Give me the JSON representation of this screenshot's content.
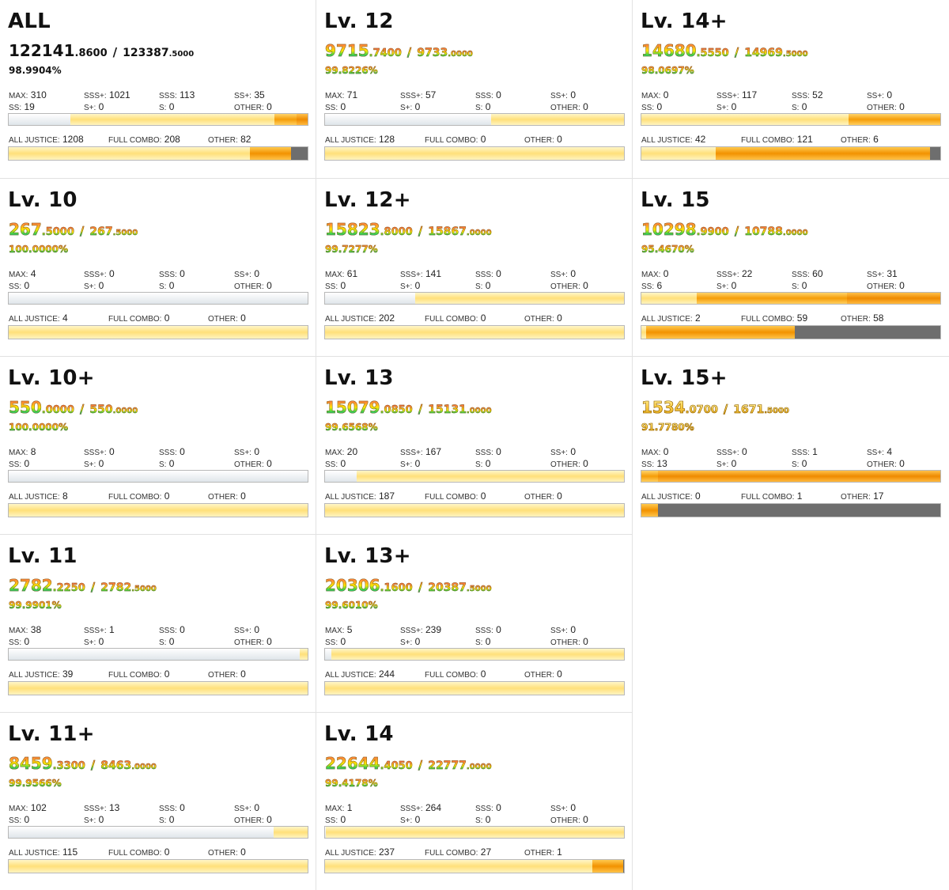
{
  "cards": [
    {
      "title": "ALL",
      "style": "plain",
      "cur_int": "122141",
      "cur_dec": ".8600",
      "max_int": "123387",
      "max_dec": ".5000",
      "percent": "98.9904%",
      "stats": {
        "max": "310",
        "sssp": "1021",
        "sss": "113",
        "ssp": "35",
        "ss": "19",
        "sp": "0",
        "s": "0",
        "other": "0"
      },
      "lamps": {
        "aj": "1208",
        "fc": "208",
        "other": "82"
      }
    },
    {
      "title": "Lv. 12",
      "style": "rainbow",
      "cur_int": "9715",
      "cur_dec": ".7400",
      "max_int": "9733",
      "max_dec": ".0000",
      "percent": "99.8226%",
      "stats": {
        "max": "71",
        "sssp": "57",
        "sss": "0",
        "ssp": "0",
        "ss": "0",
        "sp": "0",
        "s": "0",
        "other": "0"
      },
      "lamps": {
        "aj": "128",
        "fc": "0",
        "other": "0"
      }
    },
    {
      "title": "Lv. 14+",
      "style": "rainbow",
      "cur_int": "14680",
      "cur_dec": ".5550",
      "max_int": "14969",
      "max_dec": ".5000",
      "percent": "98.0697%",
      "stats": {
        "max": "0",
        "sssp": "117",
        "sss": "52",
        "ssp": "0",
        "ss": "0",
        "sp": "0",
        "s": "0",
        "other": "0"
      },
      "lamps": {
        "aj": "42",
        "fc": "121",
        "other": "6"
      }
    },
    {
      "title": "Lv. 10",
      "style": "rainbow",
      "cur_int": "267",
      "cur_dec": ".5000",
      "max_int": "267",
      "max_dec": ".5000",
      "percent": "100.0000%",
      "stats": {
        "max": "4",
        "sssp": "0",
        "sss": "0",
        "ssp": "0",
        "ss": "0",
        "sp": "0",
        "s": "0",
        "other": "0"
      },
      "lamps": {
        "aj": "4",
        "fc": "0",
        "other": "0"
      }
    },
    {
      "title": "Lv. 12+",
      "style": "rainbow",
      "cur_int": "15823",
      "cur_dec": ".8000",
      "max_int": "15867",
      "max_dec": ".0000",
      "percent": "99.7277%",
      "stats": {
        "max": "61",
        "sssp": "141",
        "sss": "0",
        "ssp": "0",
        "ss": "0",
        "sp": "0",
        "s": "0",
        "other": "0"
      },
      "lamps": {
        "aj": "202",
        "fc": "0",
        "other": "0"
      }
    },
    {
      "title": "Lv. 15",
      "style": "rainbow",
      "cur_int": "10298",
      "cur_dec": ".9900",
      "max_int": "10788",
      "max_dec": ".0000",
      "percent": "95.4670%",
      "stats": {
        "max": "0",
        "sssp": "22",
        "sss": "60",
        "ssp": "31",
        "ss": "6",
        "sp": "0",
        "s": "0",
        "other": "0"
      },
      "lamps": {
        "aj": "2",
        "fc": "59",
        "other": "58"
      }
    },
    {
      "title": "Lv. 10+",
      "style": "rainbow",
      "cur_int": "550",
      "cur_dec": ".0000",
      "max_int": "550",
      "max_dec": ".0000",
      "percent": "100.0000%",
      "stats": {
        "max": "8",
        "sssp": "0",
        "sss": "0",
        "ssp": "0",
        "ss": "0",
        "sp": "0",
        "s": "0",
        "other": "0"
      },
      "lamps": {
        "aj": "8",
        "fc": "0",
        "other": "0"
      }
    },
    {
      "title": "Lv. 13",
      "style": "rainbow",
      "cur_int": "15079",
      "cur_dec": ".0850",
      "max_int": "15131",
      "max_dec": ".0000",
      "percent": "99.6568%",
      "stats": {
        "max": "20",
        "sssp": "167",
        "sss": "0",
        "ssp": "0",
        "ss": "0",
        "sp": "0",
        "s": "0",
        "other": "0"
      },
      "lamps": {
        "aj": "187",
        "fc": "0",
        "other": "0"
      }
    },
    {
      "title": "Lv. 15+",
      "style": "gold",
      "cur_int": "1534",
      "cur_dec": ".0700",
      "max_int": "1671",
      "max_dec": ".5000",
      "percent": "91.7780%",
      "stats": {
        "max": "0",
        "sssp": "0",
        "sss": "1",
        "ssp": "4",
        "ss": "13",
        "sp": "0",
        "s": "0",
        "other": "0"
      },
      "lamps": {
        "aj": "0",
        "fc": "1",
        "other": "17"
      }
    },
    {
      "title": "Lv. 11",
      "style": "rainbow",
      "cur_int": "2782",
      "cur_dec": ".2250",
      "max_int": "2782",
      "max_dec": ".5000",
      "percent": "99.9901%",
      "stats": {
        "max": "38",
        "sssp": "1",
        "sss": "0",
        "ssp": "0",
        "ss": "0",
        "sp": "0",
        "s": "0",
        "other": "0"
      },
      "lamps": {
        "aj": "39",
        "fc": "0",
        "other": "0"
      }
    },
    {
      "title": "Lv. 13+",
      "style": "rainbow",
      "cur_int": "20306",
      "cur_dec": ".1600",
      "max_int": "20387",
      "max_dec": ".5000",
      "percent": "99.6010%",
      "stats": {
        "max": "5",
        "sssp": "239",
        "sss": "0",
        "ssp": "0",
        "ss": "0",
        "sp": "0",
        "s": "0",
        "other": "0"
      },
      "lamps": {
        "aj": "244",
        "fc": "0",
        "other": "0"
      }
    },
    {
      "title": "Lv. 11+",
      "style": "rainbow",
      "cur_int": "8459",
      "cur_dec": ".3300",
      "max_int": "8463",
      "max_dec": ".0000",
      "percent": "99.9566%",
      "stats": {
        "max": "102",
        "sssp": "13",
        "sss": "0",
        "ssp": "0",
        "ss": "0",
        "sp": "0",
        "s": "0",
        "other": "0"
      },
      "lamps": {
        "aj": "115",
        "fc": "0",
        "other": "0"
      }
    },
    {
      "title": "Lv. 14",
      "style": "rainbow",
      "cur_int": "22644",
      "cur_dec": ".4050",
      "max_int": "22777",
      "max_dec": ".0000",
      "percent": "99.4178%",
      "stats": {
        "max": "1",
        "sssp": "264",
        "sss": "0",
        "ssp": "0",
        "ss": "0",
        "sp": "0",
        "s": "0",
        "other": "0"
      },
      "lamps": {
        "aj": "237",
        "fc": "27",
        "other": "1"
      }
    }
  ],
  "labels": {
    "max": "MAX:",
    "sssp": "SSS+:",
    "sss": "SSS:",
    "ssp": "SS+:",
    "ss": "SS:",
    "sp": "S+:",
    "s": "S:",
    "other": "OTHER:",
    "aj": "ALL JUSTICE:",
    "fc": "FULL COMBO:",
    "lamp_other": "OTHER:"
  }
}
